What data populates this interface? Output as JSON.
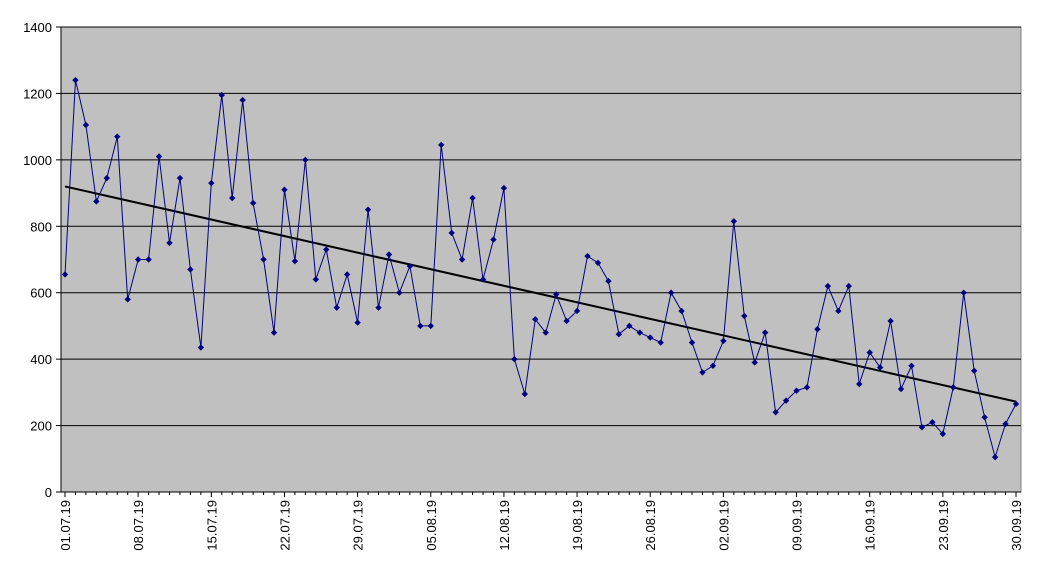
{
  "chart_data": {
    "type": "line",
    "title": "",
    "xlabel": "",
    "ylabel": "",
    "ylim": [
      0,
      1400
    ],
    "yticks": [
      0,
      200,
      400,
      600,
      800,
      1000,
      1200,
      1400
    ],
    "grid": "horizontal",
    "legend": "none",
    "x_start": "01.07.19",
    "x_end": "30.09.19",
    "xtick_labels": [
      "01.07.19",
      "08.07.19",
      "15.07.19",
      "22.07.19",
      "29.07.19",
      "05.08.19",
      "12.08.19",
      "19.08.19",
      "26.08.19",
      "02.09.19",
      "09.09.19",
      "16.09.19",
      "23.09.19",
      "30.09.19"
    ],
    "series": [
      {
        "values": [
          655,
          1240,
          1105,
          875,
          945,
          1070,
          580,
          700,
          700,
          1010,
          750,
          945,
          670,
          435,
          930,
          1195,
          885,
          1180,
          870,
          700,
          480,
          910,
          695,
          1000,
          640,
          730,
          555,
          655,
          510,
          850,
          555,
          715,
          600,
          680,
          500,
          500,
          1045,
          780,
          700,
          885,
          640,
          760,
          915,
          400,
          295,
          520,
          480,
          595,
          515,
          545,
          710,
          690,
          635,
          475,
          500,
          480,
          465,
          450,
          600,
          545,
          450,
          360,
          380,
          455,
          815,
          530,
          390,
          480,
          240,
          275,
          305,
          315,
          490,
          620,
          545,
          620,
          325,
          420,
          375,
          515,
          310,
          380,
          195,
          210,
          175,
          315,
          600,
          365,
          225,
          105,
          205,
          265
        ]
      },
      {
        "type": "trendline",
        "values": [
          920,
          272
        ]
      }
    ]
  },
  "colors": {
    "plot_bg": "#c0c0c0",
    "series": "#000080",
    "trend": "#000000",
    "grid": "#000000"
  }
}
